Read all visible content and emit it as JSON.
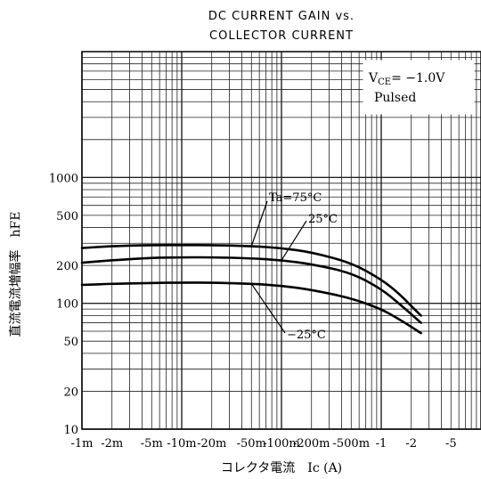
{
  "chart_data": {
    "type": "line",
    "title_line1": "DC CURRENT GAIN vs.",
    "title_line2": "COLLECTOR CURRENT",
    "xlabel": "コレクタ電流　Ic (A)",
    "ylabel": "直流電流増幅率　hFE",
    "x_scale": "log",
    "y_scale": "log",
    "xlim": [
      -0.001,
      -10
    ],
    "ylim": [
      10,
      10000
    ],
    "x_ticks": [
      {
        "value": 0.001,
        "label": "-1m"
      },
      {
        "value": 0.002,
        "label": "-2m"
      },
      {
        "value": 0.005,
        "label": "-5m"
      },
      {
        "value": 0.01,
        "label": "-10m"
      },
      {
        "value": 0.02,
        "label": "-20m"
      },
      {
        "value": 0.05,
        "label": "-50m"
      },
      {
        "value": 0.1,
        "label": "-100m"
      },
      {
        "value": 0.2,
        "label": "-200m"
      },
      {
        "value": 0.5,
        "label": "-500m"
      },
      {
        "value": 1,
        "label": "-1"
      },
      {
        "value": 2,
        "label": "-2"
      },
      {
        "value": 5,
        "label": "-5"
      }
    ],
    "y_ticks": [
      {
        "value": 10,
        "label": "10"
      },
      {
        "value": 20,
        "label": "20"
      },
      {
        "value": 50,
        "label": "50"
      },
      {
        "value": 100,
        "label": "100"
      },
      {
        "value": 200,
        "label": "200"
      },
      {
        "value": 500,
        "label": "500"
      },
      {
        "value": 1000,
        "label": "1000"
      }
    ],
    "grid": true,
    "legend_box": {
      "line1": "V",
      "line1_sub": "CE",
      "line1_value": "= −1.0V",
      "line2": "Pulsed",
      "placement": "top-right"
    },
    "series": [
      {
        "name": "Ta=75°C",
        "x": [
          -0.001,
          -0.002,
          -0.005,
          -0.01,
          -0.02,
          -0.05,
          -0.1,
          -0.2,
          -0.5,
          -1,
          -1.5,
          -2,
          -2.5
        ],
        "y": [
          275,
          285,
          290,
          290,
          290,
          285,
          275,
          255,
          210,
          155,
          120,
          95,
          80
        ]
      },
      {
        "name": "25°C",
        "x": [
          -0.001,
          -0.002,
          -0.005,
          -0.01,
          -0.02,
          -0.05,
          -0.1,
          -0.2,
          -0.5,
          -1,
          -1.5,
          -2,
          -2.5
        ],
        "y": [
          210,
          220,
          230,
          232,
          232,
          228,
          220,
          205,
          175,
          130,
          100,
          82,
          70
        ]
      },
      {
        "name": "−25°C",
        "x": [
          -0.001,
          -0.002,
          -0.005,
          -0.01,
          -0.02,
          -0.05,
          -0.1,
          -0.2,
          -0.5,
          -1,
          -1.5,
          -2,
          -2.5
        ],
        "y": [
          140,
          143,
          145,
          146,
          146,
          143,
          138,
          128,
          110,
          90,
          75,
          65,
          58
        ]
      }
    ],
    "labels": [
      {
        "text": "Ta=75°C",
        "series": 0
      },
      {
        "text": "25°C",
        "series": 1
      },
      {
        "text": "−25°C",
        "series": 2
      }
    ]
  }
}
